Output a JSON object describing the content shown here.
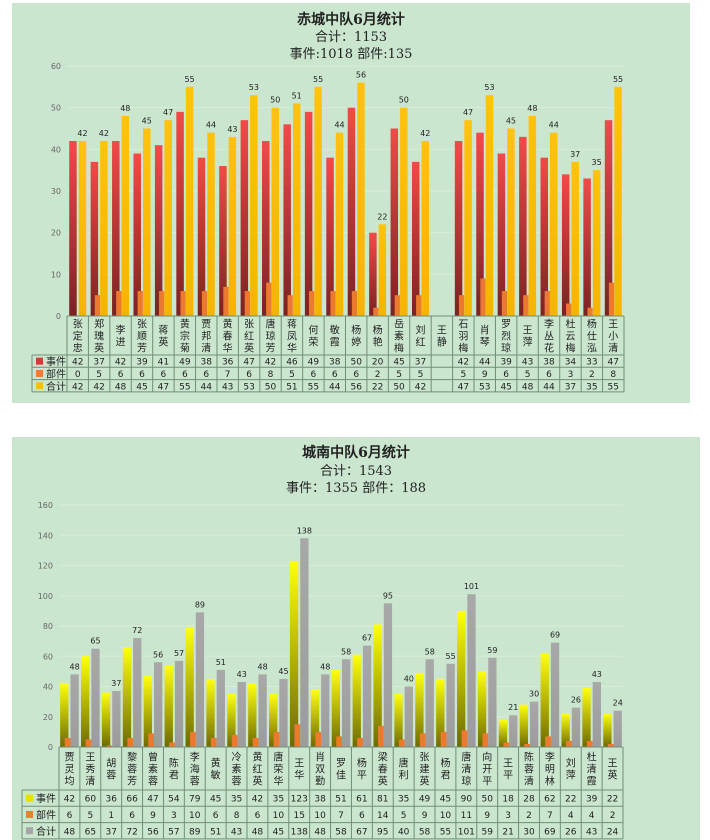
{
  "chart_data": [
    {
      "type": "bar",
      "title": "赤城中队6月统计",
      "subtitle1": "合计：1153",
      "subtitle2": "事件:1018 部件:135",
      "ylim": [
        0,
        60
      ],
      "yticks": [
        0,
        10,
        20,
        30,
        40,
        50,
        60
      ],
      "legend_placement": "data-table",
      "categories": [
        "张定忠",
        "郑瑰英",
        "李进",
        "张顺芳",
        "蒋英",
        "黄宗菊",
        "贾邦清",
        "黄春华",
        "张红英",
        "唐琼芳",
        "蒋凤华",
        "何荣",
        "敬霞",
        "杨婷",
        "杨艳",
        "岳素梅",
        "刘红",
        "王静",
        "石羽梅",
        "肖琴",
        "罗烈琼",
        "王萍",
        "李丛花",
        "杜云梅",
        "杨仕泓",
        "王小清"
      ],
      "series": [
        {
          "name": "事件",
          "color": "#d9383a",
          "values": [
            42,
            37,
            42,
            39,
            41,
            49,
            38,
            36,
            47,
            42,
            46,
            49,
            38,
            50,
            20,
            45,
            37,
            null,
            42,
            44,
            39,
            43,
            38,
            34,
            33,
            47
          ]
        },
        {
          "name": "部件",
          "color": "#ef7d2c",
          "values": [
            0,
            5,
            6,
            6,
            6,
            6,
            6,
            7,
            6,
            8,
            5,
            6,
            6,
            6,
            2,
            5,
            5,
            null,
            5,
            9,
            6,
            5,
            6,
            3,
            2,
            8
          ]
        },
        {
          "name": "合计",
          "color": "#f7bf12",
          "values": [
            42,
            42,
            48,
            45,
            47,
            55,
            44,
            43,
            53,
            50,
            51,
            55,
            44,
            56,
            22,
            50,
            42,
            null,
            47,
            53,
            45,
            48,
            44,
            37,
            35,
            55
          ]
        }
      ]
    },
    {
      "type": "bar",
      "title": "城南中队6月统计",
      "subtitle1": "合计：1543",
      "subtitle2": "事件：1355 部件：188",
      "ylim": [
        0,
        160
      ],
      "yticks": [
        0,
        20,
        40,
        60,
        80,
        100,
        120,
        140,
        160
      ],
      "legend_placement": "data-table",
      "categories": [
        "贾灵均",
        "王秀清",
        "胡蓉",
        "黎蓉芳",
        "曾素蓉",
        "陈君",
        "李海蓉",
        "黄敏",
        "冷素蓉",
        "黄红英",
        "唐荣华",
        "王华",
        "肖双勤",
        "罗佳",
        "杨平",
        "梁春英",
        "唐利",
        "张建英",
        "杨君",
        "唐清琼",
        "向开平",
        "王平",
        "陈蓉清",
        "李明林",
        "刘萍",
        "杜清霞",
        "王英"
      ],
      "series": [
        {
          "name": "事件",
          "color": "#e8e000",
          "values": [
            42,
            60,
            36,
            66,
            47,
            54,
            79,
            45,
            35,
            42,
            35,
            123,
            38,
            51,
            61,
            81,
            35,
            49,
            45,
            90,
            50,
            18,
            28,
            62,
            22,
            39,
            22
          ]
        },
        {
          "name": "部件",
          "color": "#ef7d2c",
          "values": [
            6,
            5,
            1,
            6,
            9,
            3,
            10,
            6,
            8,
            6,
            10,
            15,
            10,
            7,
            6,
            14,
            5,
            9,
            10,
            11,
            9,
            3,
            2,
            7,
            4,
            4,
            2
          ]
        },
        {
          "name": "合计",
          "color": "#a6a6a6",
          "values": [
            48,
            65,
            37,
            72,
            56,
            57,
            89,
            51,
            43,
            48,
            45,
            138,
            48,
            58,
            67,
            95,
            40,
            58,
            55,
            101,
            59,
            21,
            30,
            69,
            26,
            43,
            24
          ]
        }
      ]
    }
  ]
}
